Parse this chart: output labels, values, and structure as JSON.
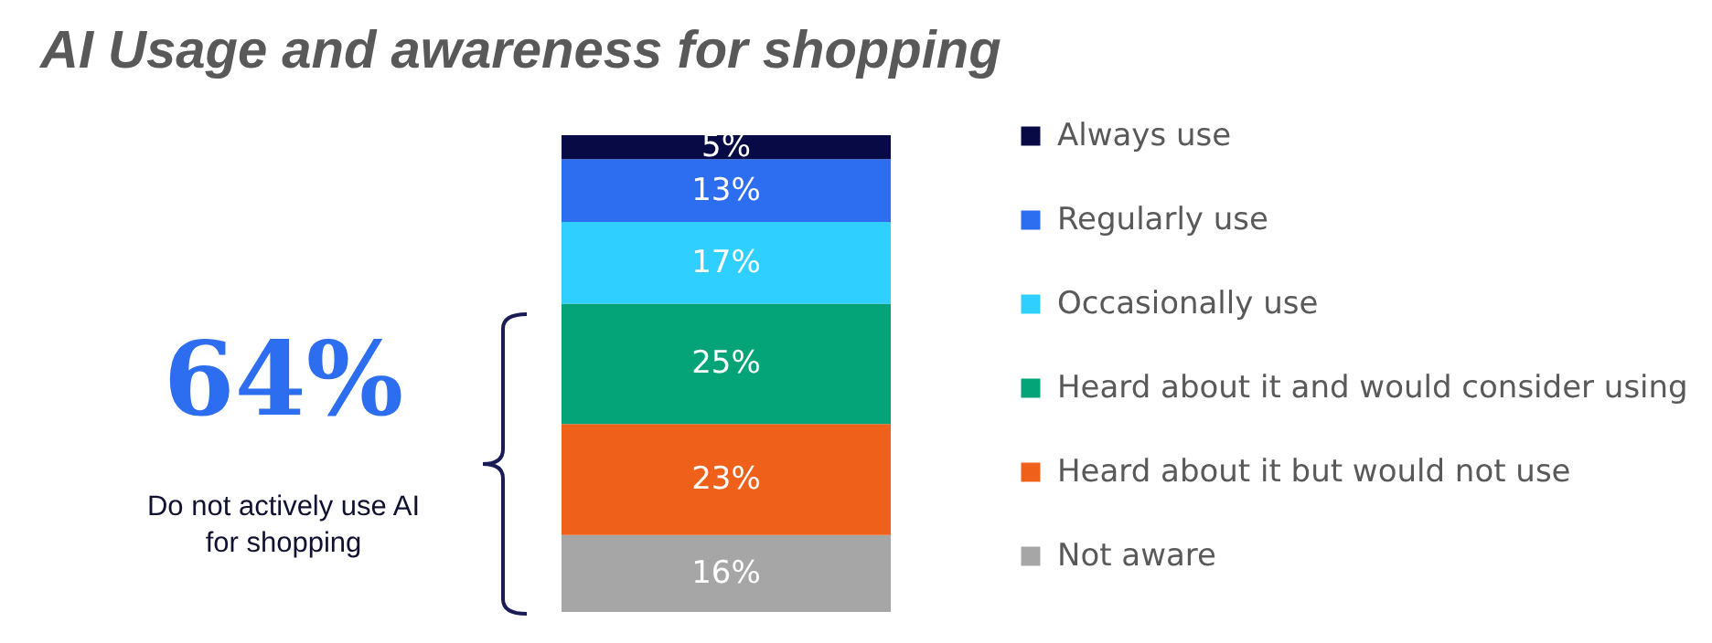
{
  "chart_data": {
    "type": "bar",
    "title": "AI Usage and awareness for shopping",
    "stacked": true,
    "categories": [
      null
    ],
    "legend": "right",
    "series": [
      {
        "name": "Not aware",
        "color": "#a6a6a6",
        "values": [
          16
        ],
        "value_labels": [
          "16%"
        ]
      },
      {
        "name": "Heard about it but would not use",
        "color": "#ef611b",
        "values": [
          23
        ],
        "value_labels": [
          "23%"
        ]
      },
      {
        "name": "Heard about it and would consider using",
        "color": "#05a478",
        "values": [
          25
        ],
        "value_labels": [
          "25%"
        ]
      },
      {
        "name": "Occasionally use",
        "color": "#2fd0ff",
        "values": [
          17
        ],
        "value_labels": [
          "17%"
        ]
      },
      {
        "name": "Regularly use",
        "color": "#2d6df0",
        "values": [
          13
        ],
        "value_labels": [
          "13%"
        ]
      },
      {
        "name": "Always use",
        "color": "#070a45",
        "values": [
          5
        ],
        "value_labels": [
          "5%"
        ]
      }
    ],
    "annotations": [
      "64%",
      "Do not actively use AI for shopping"
    ]
  }
}
